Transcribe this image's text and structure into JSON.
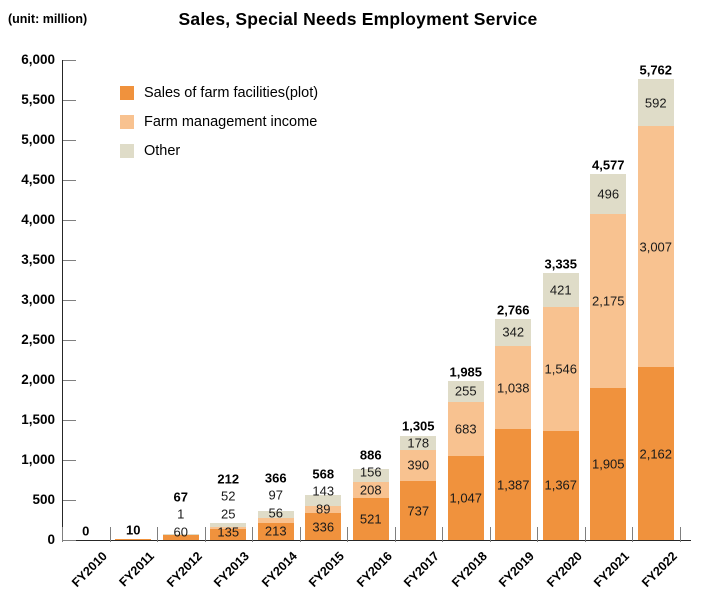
{
  "chart_data": {
    "type": "bar",
    "stacked": true,
    "title": "Sales, Special Needs Employment Service",
    "unit_label": "(unit: million)",
    "grid": false,
    "legend_position": "top-left-inside",
    "categories": [
      "FY2010",
      "FY2011",
      "FY2012",
      "FY2013",
      "FY2014",
      "FY2015",
      "FY2016",
      "FY2017",
      "FY2018",
      "FY2019",
      "FY2020",
      "FY2021",
      "FY2022"
    ],
    "series": [
      {
        "name": "Sales of farm facilities(plot)",
        "color": "#F0923D",
        "values": [
          0,
          10,
          60,
          135,
          213,
          336,
          521,
          737,
          1047,
          1387,
          1367,
          1905,
          2162
        ],
        "labels": [
          "",
          "",
          "60",
          "135",
          "213",
          "336",
          "521",
          "737",
          "1,047",
          "1,387",
          "1,367",
          "1,905",
          "2,162"
        ]
      },
      {
        "name": "Farm management income",
        "color": "#F8C290",
        "values": [
          0,
          0,
          1,
          25,
          56,
          89,
          208,
          390,
          683,
          1038,
          1546,
          2175,
          3007
        ],
        "labels": [
          "",
          "",
          "1",
          "25",
          "56",
          "89",
          "208",
          "390",
          "683",
          "1,038",
          "1,546",
          "2,175",
          "3,007"
        ]
      },
      {
        "name": "Other",
        "color": "#DFDCC8",
        "values": [
          0,
          0,
          6,
          52,
          97,
          143,
          156,
          178,
          255,
          342,
          421,
          496,
          592
        ],
        "labels": [
          "",
          "",
          "",
          "52",
          "97",
          "143",
          "156",
          "178",
          "255",
          "342",
          "421",
          "496",
          "592"
        ]
      }
    ],
    "totals": {
      "values": [
        0,
        10,
        67,
        212,
        366,
        568,
        886,
        1305,
        1985,
        2766,
        3335,
        4577,
        5762
      ],
      "labels": [
        "0",
        "10",
        "67",
        "212",
        "366",
        "568",
        "886",
        "1,305",
        "1,985",
        "2,766",
        "3,335",
        "4,577",
        "5,762"
      ]
    },
    "yaxis": {
      "min": 0,
      "max": 6000,
      "step": 500,
      "tick_labels": [
        "0",
        "500",
        "1,000",
        "1,500",
        "2,000",
        "2,500",
        "3,000",
        "3,500",
        "4,000",
        "4,500",
        "5,000",
        "5,500",
        "6,000"
      ]
    }
  }
}
